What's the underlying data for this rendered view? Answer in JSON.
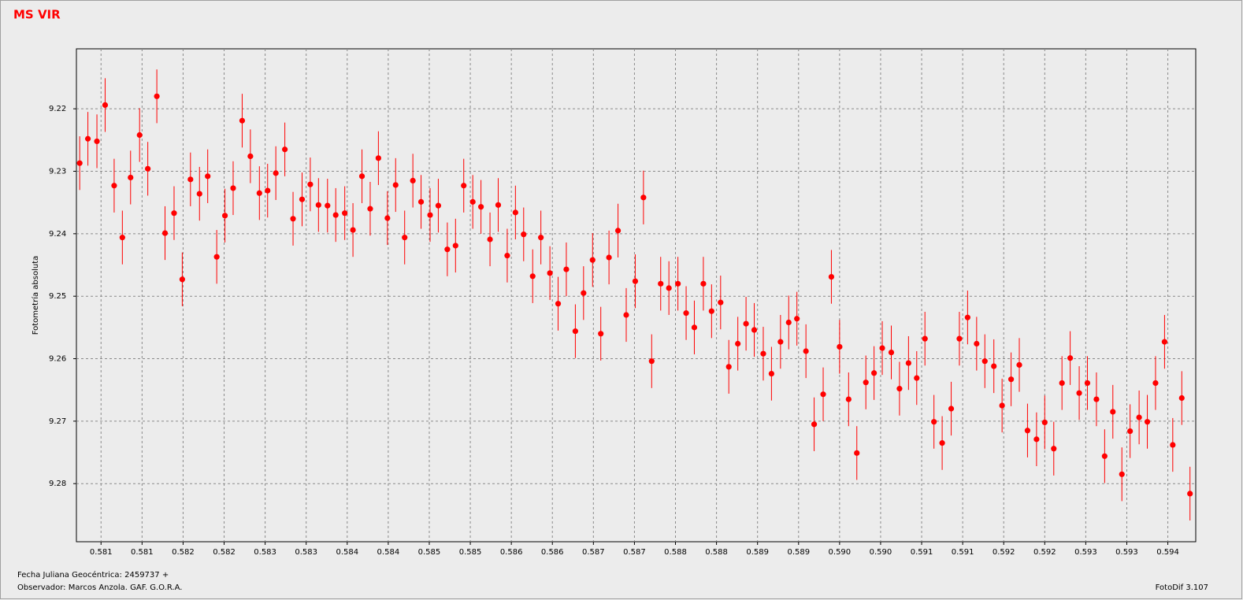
{
  "chart_data": {
    "type": "scatter",
    "title": "MS VIR",
    "ylabel": "Fotometría absoluta",
    "x_label": "Fecha Juliana Geocéntrica: 2459737 +",
    "observer": "Observador:  Marcos Anzola. GAF. G.O.R.A.",
    "software": "FotoDif 3.107",
    "color": "#ff0000",
    "grid": true,
    "y_inverted": true,
    "error": 0.0043,
    "xlim": [
      0.5805,
      0.59414
    ],
    "ylim": [
      9.2104,
      9.2893
    ],
    "xticks": [
      {
        "value": 0.5808,
        "label": "0.581"
      },
      {
        "value": 0.5813,
        "label": "0.581"
      },
      {
        "value": 0.5818,
        "label": "0.582"
      },
      {
        "value": 0.5823,
        "label": "0.582"
      },
      {
        "value": 0.5828,
        "label": "0.583"
      },
      {
        "value": 0.5833,
        "label": "0.583"
      },
      {
        "value": 0.5838,
        "label": "0.584"
      },
      {
        "value": 0.5843,
        "label": "0.584"
      },
      {
        "value": 0.5848,
        "label": "0.585"
      },
      {
        "value": 0.5853,
        "label": "0.585"
      },
      {
        "value": 0.5858,
        "label": "0.586"
      },
      {
        "value": 0.5863,
        "label": "0.586"
      },
      {
        "value": 0.5868,
        "label": "0.587"
      },
      {
        "value": 0.5873,
        "label": "0.587"
      },
      {
        "value": 0.5878,
        "label": "0.588"
      },
      {
        "value": 0.5883,
        "label": "0.588"
      },
      {
        "value": 0.5888,
        "label": "0.589"
      },
      {
        "value": 0.5893,
        "label": "0.589"
      },
      {
        "value": 0.5898,
        "label": "0.590"
      },
      {
        "value": 0.5903,
        "label": "0.590"
      },
      {
        "value": 0.5908,
        "label": "0.591"
      },
      {
        "value": 0.5913,
        "label": "0.591"
      },
      {
        "value": 0.5918,
        "label": "0.592"
      },
      {
        "value": 0.5923,
        "label": "0.592"
      },
      {
        "value": 0.5928,
        "label": "0.593"
      },
      {
        "value": 0.5933,
        "label": "0.593"
      },
      {
        "value": 0.5938,
        "label": "0.594"
      }
    ],
    "yticks": [
      9.22,
      9.23,
      9.24,
      9.25,
      9.26,
      9.27,
      9.28
    ],
    "x": [
      0.58054,
      0.58064,
      0.58075,
      0.58085,
      0.58096,
      0.58106,
      0.58116,
      0.58127,
      0.58137,
      0.58148,
      0.58158,
      0.58169,
      0.58179,
      0.58189,
      0.582,
      0.5821,
      0.58221,
      0.58231,
      0.58241,
      0.58252,
      0.58262,
      0.58273,
      0.58283,
      0.58293,
      0.58304,
      0.58314,
      0.58325,
      0.58335,
      0.58345,
      0.58356,
      0.58366,
      0.58377,
      0.58387,
      0.58398,
      0.58408,
      0.58418,
      0.58429,
      0.58439,
      0.5845,
      0.5846,
      0.5847,
      0.58481,
      0.58491,
      0.58502,
      0.58512,
      0.58522,
      0.58533,
      0.58543,
      0.58554,
      0.58564,
      0.58575,
      0.58585,
      0.58595,
      0.58606,
      0.58616,
      0.58627,
      0.58637,
      0.58647,
      0.58658,
      0.58668,
      0.58679,
      0.58689,
      0.58699,
      0.5871,
      0.5872,
      0.58731,
      0.58741,
      0.58751,
      0.58762,
      0.58772,
      0.58783,
      0.58793,
      0.58803,
      0.58814,
      0.58824,
      0.58835,
      0.58845,
      0.58856,
      0.58866,
      0.58876,
      0.58887,
      0.58897,
      0.58908,
      0.58918,
      0.58928,
      0.58939,
      0.58949,
      0.5896,
      0.5897,
      0.5898,
      0.58991,
      0.59001,
      0.59012,
      0.59022,
      0.59032,
      0.59043,
      0.59053,
      0.59064,
      0.59074,
      0.59084,
      0.59095,
      0.59105,
      0.59116,
      0.59126,
      0.59136,
      0.59147,
      0.59157,
      0.59168,
      0.59178,
      0.59189,
      0.59199,
      0.59209,
      0.5922,
      0.5923,
      0.59241,
      0.59251,
      0.59261,
      0.59272,
      0.59282,
      0.59293,
      0.59303,
      0.59313,
      0.59324,
      0.59334,
      0.59345,
      0.59355,
      0.59365,
      0.59376,
      0.59386,
      0.59397,
      0.59407
    ],
    "y": [
      9.2287,
      9.2248,
      9.2252,
      9.2194,
      9.2323,
      9.2406,
      9.231,
      9.2242,
      9.2296,
      9.218,
      9.2399,
      9.2367,
      9.2473,
      9.2313,
      9.2336,
      9.2308,
      9.2437,
      9.2371,
      9.2327,
      9.2219,
      9.2276,
      9.2335,
      9.2331,
      9.2303,
      9.2265,
      9.2376,
      9.2345,
      9.2321,
      9.2354,
      9.2355,
      9.237,
      9.2367,
      9.2394,
      9.2308,
      9.236,
      9.2279,
      9.2375,
      9.2322,
      9.2406,
      9.2315,
      9.2349,
      9.237,
      9.2355,
      9.2425,
      9.2419,
      9.2323,
      9.2349,
      9.2357,
      9.2409,
      9.2354,
      9.2435,
      9.2366,
      9.2401,
      9.2468,
      9.2406,
      9.2463,
      9.2512,
      9.2457,
      9.2556,
      9.2495,
      9.2442,
      9.256,
      9.2438,
      9.2395,
      9.253,
      9.2476,
      9.2342,
      9.2604,
      9.248,
      9.2487,
      9.248,
      9.2527,
      9.255,
      9.248,
      9.2524,
      9.251,
      9.2613,
      9.2576,
      9.2544,
      9.2554,
      9.2592,
      9.2624,
      9.2573,
      9.2542,
      9.2536,
      9.2588,
      9.2705,
      9.2657,
      9.2469,
      9.2581,
      9.2665,
      9.2751,
      9.2638,
      9.2623,
      9.2583,
      9.259,
      9.2648,
      9.2607,
      9.2631,
      9.2568,
      9.2701,
      9.2735,
      9.268,
      9.2568,
      9.2534,
      9.2576,
      9.2604,
      9.2612,
      9.2675,
      9.2633,
      9.261,
      9.2715,
      9.2729,
      9.2702,
      9.2744,
      9.2639,
      9.2599,
      9.2655,
      9.2639,
      9.2665,
      9.2756,
      9.2685,
      9.2785,
      9.2716,
      9.2694,
      9.2701,
      9.2639,
      9.2573,
      9.2738,
      9.2663,
      9.2816
    ]
  }
}
